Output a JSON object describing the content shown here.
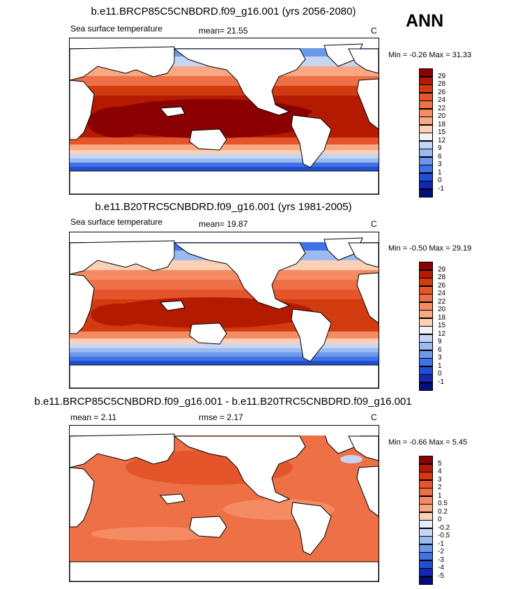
{
  "season": "ANN",
  "panels": [
    {
      "id": "future",
      "title": "b.e11.BRCP85C5CNBDRD.f09_g16.001 (yrs 2056-2080)",
      "left_label": "Sea surface temperature",
      "center_label": "mean=  21.55",
      "units": "C",
      "minmax": "Min =  -0.26 Max =  31.33",
      "levels": [
        "29",
        "28",
        "26",
        "24",
        "22",
        "20",
        "18",
        "15",
        "12",
        "9",
        "6",
        "3",
        "1",
        "0",
        "-1"
      ],
      "colors": [
        "#8b0000",
        "#b31a00",
        "#d23a10",
        "#e4552c",
        "#ee7046",
        "#f58b62",
        "#f9a883",
        "#fcd0b6",
        "#f2f2f4",
        "#c4d6f4",
        "#9bbaf0",
        "#6c98ea",
        "#3f72e4",
        "#1f4fd2",
        "#1326b6",
        "#000f7a"
      ]
    },
    {
      "id": "present",
      "title": "b.e11.B20TRC5CNBDRD.f09_g16.001 (yrs 1981-2005)",
      "left_label": "Sea surface temperature",
      "center_label": "mean=  19.87",
      "units": "C",
      "minmax": "Min =  -0.50 Max =  29.19",
      "levels": [
        "29",
        "28",
        "26",
        "24",
        "22",
        "20",
        "18",
        "15",
        "12",
        "9",
        "6",
        "3",
        "1",
        "0",
        "-1"
      ],
      "colors": [
        "#8b0000",
        "#b31a00",
        "#d23a10",
        "#e4552c",
        "#ee7046",
        "#f58b62",
        "#f9a883",
        "#fcd0b6",
        "#f2f2f4",
        "#c4d6f4",
        "#9bbaf0",
        "#6c98ea",
        "#3f72e4",
        "#1f4fd2",
        "#1326b6",
        "#000f7a"
      ]
    },
    {
      "id": "difference",
      "title": "b.e11.BRCP85C5CNBDRD.f09_g16.001 - b.e11.B20TRC5CNBDRD.f09_g16.001",
      "left_label": "mean =   2.11",
      "center_label": "rmse =   2.17",
      "units": "C",
      "minmax": "Min =  -0.66 Max =   5.45",
      "levels": [
        "5",
        "4",
        "3",
        "2",
        "1",
        "0.5",
        "0.2",
        "0",
        "-0.2",
        "-0.5",
        "-1",
        "-2",
        "-3",
        "-4",
        "-5"
      ],
      "colors": [
        "#8b0000",
        "#b31a00",
        "#d23a10",
        "#e4552c",
        "#ee7046",
        "#f58b62",
        "#f9a883",
        "#fcd0b6",
        "#e6eefa",
        "#c4d6f4",
        "#9bbaf0",
        "#6c98ea",
        "#3f72e4",
        "#1f4fd2",
        "#1326b6",
        "#000f7a"
      ]
    }
  ]
}
